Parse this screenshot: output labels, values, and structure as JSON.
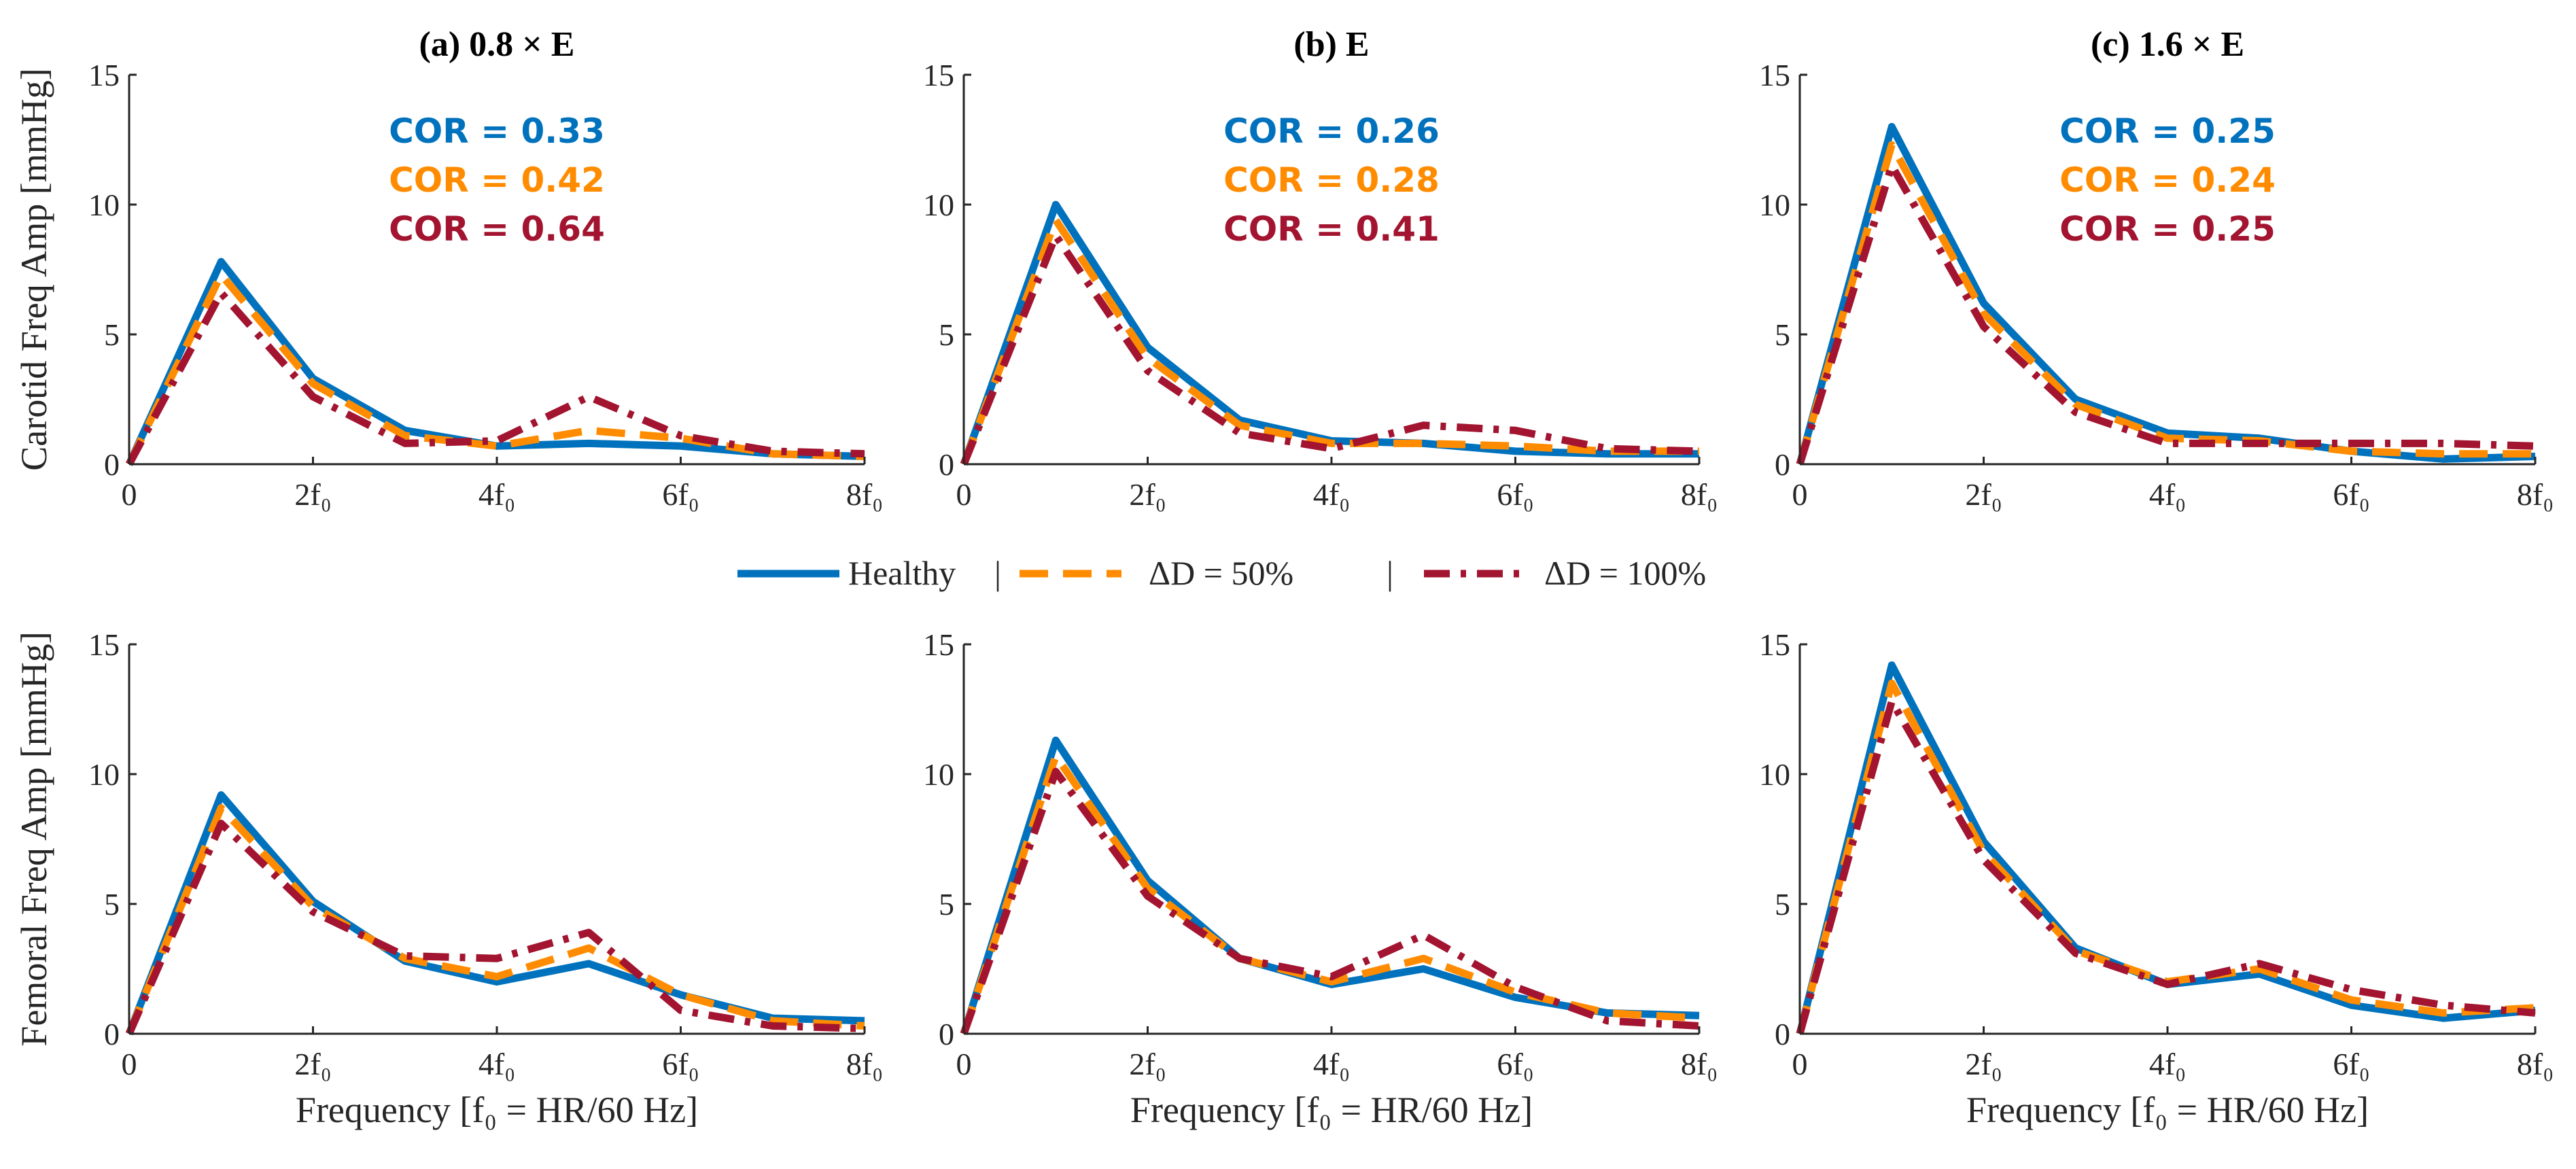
{
  "figure": {
    "legend": {
      "separator": "|",
      "entries": [
        {
          "label": "Healthy",
          "color": "#0072BD",
          "dash": "solid"
        },
        {
          "label": "ΔD  =  50%",
          "color": "#FF8C00",
          "dash": "dashed"
        },
        {
          "label": "ΔD  =  100%",
          "color": "#A2142F",
          "dash": "dashdot"
        }
      ]
    },
    "colors": {
      "healthy": "#0072BD",
      "d50": "#FF8C00",
      "d100": "#A2142F",
      "axis": "#262626"
    }
  },
  "chart_data": [
    {
      "type": "line",
      "title": "(a) 0.8 × E",
      "ylabel": "Carotid Freq Amp [mmHg]",
      "xlabel": "",
      "x": [
        0,
        1,
        2,
        3,
        4,
        5,
        6,
        7,
        8
      ],
      "xlim": [
        0,
        8
      ],
      "ylim": [
        0,
        15
      ],
      "xticks": [
        0,
        2,
        4,
        6,
        8
      ],
      "xticklabels": [
        "0",
        "2f₀",
        "4f₀",
        "6f₀",
        "8f₀"
      ],
      "yticks": [
        0,
        5,
        10,
        15
      ],
      "yticklabels": [
        "0",
        "5",
        "10",
        "15"
      ],
      "annotations": [
        {
          "text": "COR = 0.33",
          "color": "#0072BD"
        },
        {
          "text": "COR = 0.42",
          "color": "#FF8C00"
        },
        {
          "text": "COR = 0.64",
          "color": "#A2142F"
        }
      ],
      "series": [
        {
          "name": "Healthy",
          "values": [
            0,
            7.8,
            3.3,
            1.3,
            0.7,
            0.8,
            0.7,
            0.4,
            0.3
          ]
        },
        {
          "name": "ΔD = 50%",
          "values": [
            0,
            7.3,
            3.1,
            1.1,
            0.7,
            1.3,
            1.0,
            0.4,
            0.3
          ]
        },
        {
          "name": "ΔD = 100%",
          "values": [
            0,
            6.6,
            2.6,
            0.8,
            0.9,
            2.6,
            1.1,
            0.5,
            0.4
          ]
        }
      ]
    },
    {
      "type": "line",
      "title": "(b) E",
      "ylabel": "",
      "xlabel": "",
      "x": [
        0,
        1,
        2,
        3,
        4,
        5,
        6,
        7,
        8
      ],
      "xlim": [
        0,
        8
      ],
      "ylim": [
        0,
        15
      ],
      "xticks": [
        0,
        2,
        4,
        6,
        8
      ],
      "xticklabels": [
        "0",
        "2f₀",
        "4f₀",
        "6f₀",
        "8f₀"
      ],
      "yticks": [
        0,
        5,
        10,
        15
      ],
      "yticklabels": [
        "0",
        "5",
        "10",
        "15"
      ],
      "annotations": [
        {
          "text": "COR = 0.26",
          "color": "#0072BD"
        },
        {
          "text": "COR = 0.28",
          "color": "#FF8C00"
        },
        {
          "text": "COR = 0.41",
          "color": "#A2142F"
        }
      ],
      "series": [
        {
          "name": "Healthy",
          "values": [
            0,
            10.0,
            4.5,
            1.7,
            0.9,
            0.8,
            0.5,
            0.4,
            0.4
          ]
        },
        {
          "name": "ΔD = 50%",
          "values": [
            0,
            9.4,
            4.1,
            1.5,
            0.8,
            0.8,
            0.7,
            0.5,
            0.5
          ]
        },
        {
          "name": "ΔD = 100%",
          "values": [
            0,
            8.8,
            3.6,
            1.2,
            0.6,
            1.5,
            1.3,
            0.6,
            0.5
          ]
        }
      ]
    },
    {
      "type": "line",
      "title": "(c) 1.6 × E",
      "ylabel": "",
      "xlabel": "",
      "x": [
        0,
        1,
        2,
        3,
        4,
        5,
        6,
        7,
        8
      ],
      "xlim": [
        0,
        8
      ],
      "ylim": [
        0,
        15
      ],
      "xticks": [
        0,
        2,
        4,
        6,
        8
      ],
      "xticklabels": [
        "0",
        "2f₀",
        "4f₀",
        "6f₀",
        "8f₀"
      ],
      "yticks": [
        0,
        5,
        10,
        15
      ],
      "yticklabels": [
        "0",
        "5",
        "10",
        "15"
      ],
      "annotations": [
        {
          "text": "COR = 0.25",
          "color": "#0072BD"
        },
        {
          "text": "COR = 0.24",
          "color": "#FF8C00"
        },
        {
          "text": "COR = 0.25",
          "color": "#A2142F"
        }
      ],
      "series": [
        {
          "name": "Healthy",
          "values": [
            0,
            13.0,
            6.2,
            2.5,
            1.2,
            1.0,
            0.5,
            0.2,
            0.3
          ]
        },
        {
          "name": "ΔD = 50%",
          "values": [
            0,
            12.3,
            5.8,
            2.3,
            1.0,
            0.9,
            0.5,
            0.4,
            0.4
          ]
        },
        {
          "name": "ΔD = 100%",
          "values": [
            0,
            11.5,
            5.3,
            2.0,
            0.8,
            0.8,
            0.8,
            0.8,
            0.7
          ]
        }
      ]
    },
    {
      "type": "line",
      "title": "",
      "ylabel": "Femoral Freq Amp [mmHg]",
      "xlabel": "Frequency [f₀ = HR/60 Hz]",
      "x": [
        0,
        1,
        2,
        3,
        4,
        5,
        6,
        7,
        8
      ],
      "xlim": [
        0,
        8
      ],
      "ylim": [
        0,
        15
      ],
      "xticks": [
        0,
        2,
        4,
        6,
        8
      ],
      "xticklabels": [
        "0",
        "2f₀",
        "4f₀",
        "6f₀",
        "8f₀"
      ],
      "yticks": [
        0,
        5,
        10,
        15
      ],
      "yticklabels": [
        "0",
        "5",
        "10",
        "15"
      ],
      "annotations": [],
      "series": [
        {
          "name": "Healthy",
          "values": [
            0,
            9.2,
            5.1,
            2.8,
            2.0,
            2.7,
            1.5,
            0.6,
            0.5
          ]
        },
        {
          "name": "ΔD = 50%",
          "values": [
            0,
            8.7,
            4.9,
            2.9,
            2.2,
            3.3,
            1.5,
            0.5,
            0.3
          ]
        },
        {
          "name": "ΔD = 100%",
          "values": [
            0,
            8.1,
            4.7,
            3.0,
            2.9,
            3.9,
            0.9,
            0.3,
            0.2
          ]
        }
      ]
    },
    {
      "type": "line",
      "title": "",
      "ylabel": "",
      "xlabel": "Frequency [f₀ = HR/60 Hz]",
      "x": [
        0,
        1,
        2,
        3,
        4,
        5,
        6,
        7,
        8
      ],
      "xlim": [
        0,
        8
      ],
      "ylim": [
        0,
        15
      ],
      "xticks": [
        0,
        2,
        4,
        6,
        8
      ],
      "xticklabels": [
        "0",
        "2f₀",
        "4f₀",
        "6f₀",
        "8f₀"
      ],
      "yticks": [
        0,
        5,
        10,
        15
      ],
      "yticklabels": [
        "0",
        "5",
        "10",
        "15"
      ],
      "annotations": [],
      "series": [
        {
          "name": "Healthy",
          "values": [
            0,
            11.3,
            5.9,
            2.9,
            1.9,
            2.5,
            1.4,
            0.8,
            0.7
          ]
        },
        {
          "name": "ΔD = 50%",
          "values": [
            0,
            10.7,
            5.6,
            2.9,
            2.0,
            2.9,
            1.6,
            0.8,
            0.6
          ]
        },
        {
          "name": "ΔD = 100%",
          "values": [
            0,
            10.1,
            5.3,
            2.9,
            2.2,
            3.8,
            1.8,
            0.5,
            0.3
          ]
        }
      ]
    },
    {
      "type": "line",
      "title": "",
      "ylabel": "",
      "xlabel": "Frequency [f₀ = HR/60 Hz]",
      "x": [
        0,
        1,
        2,
        3,
        4,
        5,
        6,
        7,
        8
      ],
      "xlim": [
        0,
        8
      ],
      "ylim": [
        0,
        15
      ],
      "xticks": [
        0,
        2,
        4,
        6,
        8
      ],
      "xticklabels": [
        "0",
        "2f₀",
        "4f₀",
        "6f₀",
        "8f₀"
      ],
      "yticks": [
        0,
        5,
        10,
        15
      ],
      "yticklabels": [
        "0",
        "5",
        "10",
        "15"
      ],
      "annotations": [],
      "series": [
        {
          "name": "Healthy",
          "values": [
            0,
            14.2,
            7.4,
            3.3,
            1.9,
            2.3,
            1.1,
            0.6,
            0.9
          ]
        },
        {
          "name": "ΔD = 50%",
          "values": [
            0,
            13.5,
            7.0,
            3.2,
            2.0,
            2.5,
            1.3,
            0.8,
            1.0
          ]
        },
        {
          "name": "ΔD = 100%",
          "values": [
            0,
            12.8,
            6.7,
            3.1,
            1.9,
            2.7,
            1.7,
            1.1,
            0.8
          ]
        }
      ]
    }
  ]
}
